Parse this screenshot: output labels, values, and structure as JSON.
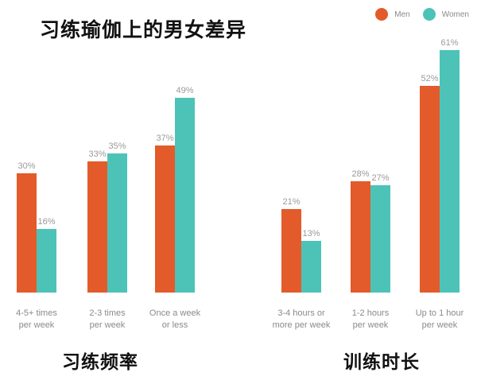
{
  "title": "习练瑜伽上的男女差异",
  "legend": [
    {
      "label": "Men",
      "color": "#e35b2a"
    },
    {
      "label": "Women",
      "color": "#4dc3b8"
    }
  ],
  "chart_data": [
    {
      "type": "bar",
      "title": "习练频率",
      "categories": [
        [
          "4-5+ times",
          "per week"
        ],
        [
          "2-3 times",
          "per week"
        ],
        [
          "Once a week",
          "or less"
        ]
      ],
      "series": [
        {
          "name": "Men",
          "color": "#e35b2a",
          "values": [
            30,
            33,
            37
          ],
          "labels": [
            "30%",
            "33%",
            "37%"
          ]
        },
        {
          "name": "Women",
          "color": "#4dc3b8",
          "values": [
            16,
            35,
            49
          ],
          "labels": [
            "16%",
            "35%",
            "49%"
          ]
        }
      ],
      "ylim": [
        0,
        64
      ]
    },
    {
      "type": "bar",
      "title": "训练时长",
      "categories": [
        [
          "3-4 hours or",
          "more per week"
        ],
        [
          "1-2 hours",
          "per week"
        ],
        [
          "Up to 1 hour",
          "per week"
        ]
      ],
      "series": [
        {
          "name": "Men",
          "color": "#e35b2a",
          "values": [
            21,
            28,
            52
          ],
          "labels": [
            "21%",
            "28%",
            "52%"
          ]
        },
        {
          "name": "Women",
          "color": "#4dc3b8",
          "values": [
            13,
            27,
            61
          ],
          "labels": [
            "13%",
            "27%",
            "61%"
          ]
        }
      ],
      "ylim": [
        0,
        64
      ]
    }
  ]
}
